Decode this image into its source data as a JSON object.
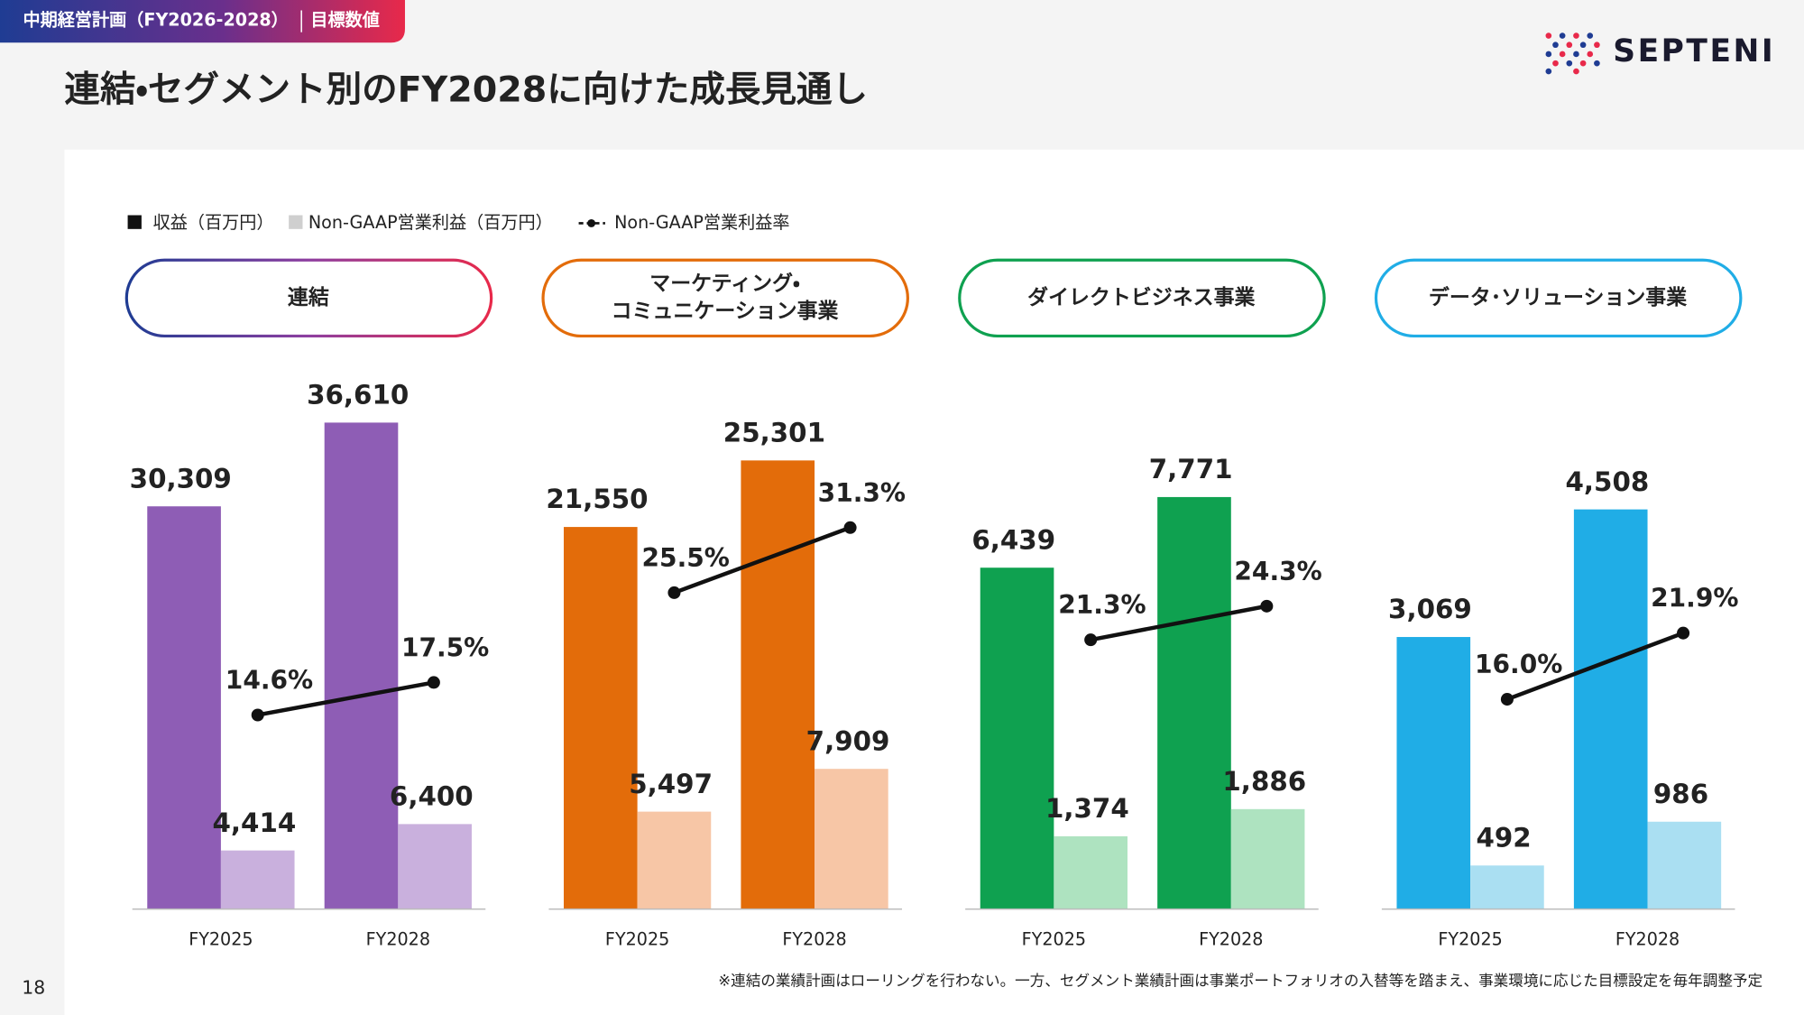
{
  "header": {
    "tag": "中期経営計画（FY2026-2028）",
    "tag2": "目標数値",
    "title": "連結・セグメント別のFY2028に向けた成長見通し",
    "logo": "SEPTENI"
  },
  "legend": [
    "収益（百万円）",
    "Non-GAAP営業利益（百万円）",
    "Non-GAAP営業利益率"
  ],
  "chart_data": [
    {
      "type": "bar",
      "title": [
        "連結"
      ],
      "categories": [
        "FY2025",
        "FY2028"
      ],
      "ylim": [
        0,
        40700
      ],
      "y2lim": [
        -2.7,
        45.5
      ],
      "series": [
        {
          "color": "#8e5db5",
          "values": [
            30309,
            36610
          ],
          "value_labels": [
            "30,309",
            "36,610"
          ]
        },
        {
          "color": "#c9b0dd",
          "values": [
            4414,
            6400
          ],
          "value_labels": [
            "4,414",
            "6,400"
          ]
        },
        {
          "color": "#111111",
          "axis": "y2",
          "values": [
            14.6,
            17.5
          ],
          "value_labels": [
            "14.6%",
            "17.5%"
          ]
        }
      ]
    },
    {
      "type": "bar",
      "title": [
        "マーケティング・",
        "コミュニケーション事業"
      ],
      "categories": [
        "FY2025",
        "FY2028"
      ],
      "ylim": [
        0,
        30500
      ],
      "y2lim": [
        -2.7,
        45.5
      ],
      "series": [
        {
          "color": "#e36c0a",
          "values": [
            21550,
            25301
          ],
          "value_labels": [
            "21,550",
            "25,301"
          ]
        },
        {
          "color": "#f7c6a6",
          "values": [
            5497,
            7909
          ],
          "value_labels": [
            "5,497",
            "7,909"
          ]
        },
        {
          "color": "#111111",
          "axis": "y2",
          "values": [
            25.5,
            31.3
          ],
          "value_labels": [
            "25.5%",
            "31.3%"
          ]
        }
      ]
    },
    {
      "type": "bar",
      "title": [
        "ダイレクトビジネス事業"
      ],
      "categories": [
        "FY2025",
        "FY2028"
      ],
      "ylim": [
        0,
        10200
      ],
      "y2lim": [
        -2.7,
        45.5
      ],
      "series": [
        {
          "color": "#0fa150",
          "values": [
            6439,
            7771
          ],
          "value_labels": [
            "6,439",
            "7,771"
          ]
        },
        {
          "color": "#aee3c0",
          "values": [
            1374,
            1886
          ],
          "value_labels": [
            "1,374",
            "1,886"
          ]
        },
        {
          "color": "#111111",
          "axis": "y2",
          "values": [
            21.3,
            24.3
          ],
          "value_labels": [
            "21.3%",
            "24.3%"
          ]
        }
      ]
    },
    {
      "type": "bar",
      "title": [
        "データ･ソリューション事業"
      ],
      "categories": [
        "FY2025",
        "FY2028"
      ],
      "ylim": [
        0,
        6100
      ],
      "y2lim": [
        -2.7,
        45.5
      ],
      "series": [
        {
          "color": "#20ade6",
          "values": [
            3069,
            4508
          ],
          "value_labels": [
            "3,069",
            "4,508"
          ]
        },
        {
          "color": "#aadff2",
          "values": [
            492,
            986
          ],
          "value_labels": [
            "492",
            "986"
          ]
        },
        {
          "color": "#111111",
          "axis": "y2",
          "values": [
            16.0,
            21.9
          ],
          "value_labels": [
            "16.0%",
            "21.9%"
          ]
        }
      ]
    }
  ],
  "footnote": "※連結の業績計画はローリングを行わない。一方、セグメント業績計画は事業ポートフォリオの入替等を踏まえ、事業環境に応じた目標設定を毎年調整予定",
  "page_number": "18"
}
